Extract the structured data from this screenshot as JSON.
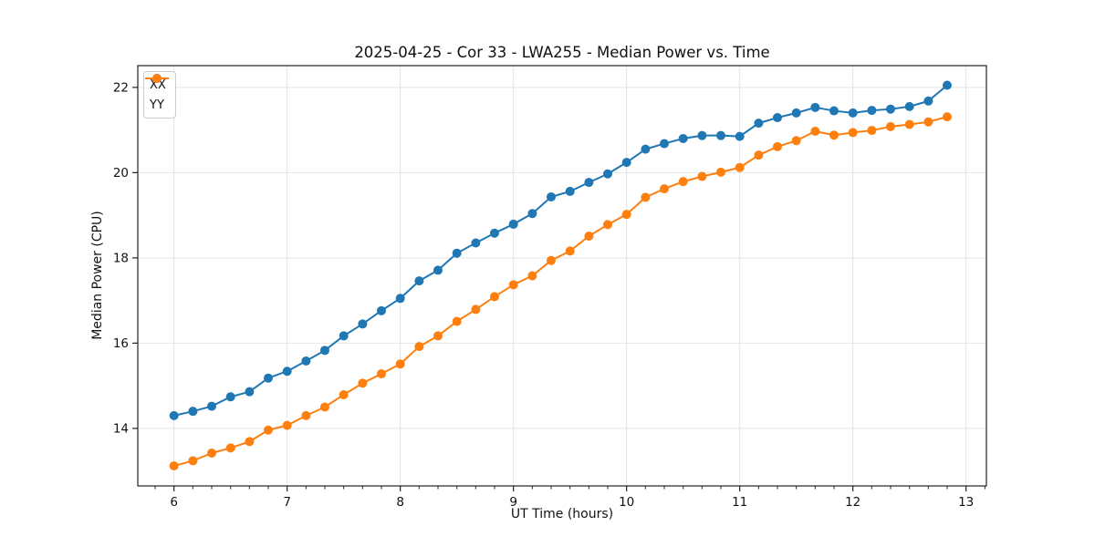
{
  "chart_data": {
    "type": "line",
    "title": "2025-04-25 - Cor 33 - LWA255 - Median Power vs. Time",
    "xlabel": "UT Time (hours)",
    "ylabel": "Median Power (CPU)",
    "xlim": [
      5.68,
      13.18
    ],
    "ylim": [
      12.65,
      22.51
    ],
    "x_ticks": [
      6,
      7,
      8,
      9,
      10,
      11,
      12,
      13
    ],
    "y_ticks": [
      14,
      16,
      18,
      20,
      22
    ],
    "x_minor_tick_step": "1/6 hour (10 min)",
    "grid": true,
    "legend_position": "upper-left",
    "marker": "circle",
    "x": [
      6.0,
      6.167,
      6.333,
      6.5,
      6.667,
      6.833,
      7.0,
      7.167,
      7.333,
      7.5,
      7.667,
      7.833,
      8.0,
      8.167,
      8.333,
      8.5,
      8.667,
      8.833,
      9.0,
      9.167,
      9.333,
      9.5,
      9.667,
      9.833,
      10.0,
      10.167,
      10.333,
      10.5,
      10.667,
      10.833,
      11.0,
      11.167,
      11.333,
      11.5,
      11.667,
      11.833,
      12.0,
      12.167,
      12.333,
      12.5,
      12.667,
      12.833
    ],
    "series": [
      {
        "name": "XX",
        "color": "#1f77b4",
        "values": [
          14.3,
          14.4,
          14.52,
          14.74,
          14.86,
          15.18,
          15.34,
          15.58,
          15.83,
          16.17,
          16.45,
          16.76,
          17.05,
          17.46,
          17.71,
          18.11,
          18.35,
          18.58,
          18.79,
          19.04,
          19.43,
          19.56,
          19.77,
          19.97,
          20.24,
          20.55,
          20.68,
          20.8,
          20.87,
          20.87,
          20.85,
          21.16,
          21.29,
          21.4,
          21.53,
          21.45,
          21.4,
          21.46,
          21.49,
          21.55,
          21.68,
          22.05
        ]
      },
      {
        "name": "YY",
        "color": "#ff7f0e",
        "values": [
          13.12,
          13.24,
          13.42,
          13.54,
          13.69,
          13.96,
          14.07,
          14.3,
          14.5,
          14.79,
          15.06,
          15.28,
          15.51,
          15.92,
          16.17,
          16.51,
          16.79,
          17.09,
          17.37,
          17.58,
          17.94,
          18.16,
          18.51,
          18.78,
          19.02,
          19.42,
          19.62,
          19.79,
          19.91,
          20.01,
          20.12,
          20.41,
          20.61,
          20.75,
          20.97,
          20.88,
          20.94,
          20.99,
          21.08,
          21.13,
          21.19,
          21.31
        ]
      }
    ]
  }
}
